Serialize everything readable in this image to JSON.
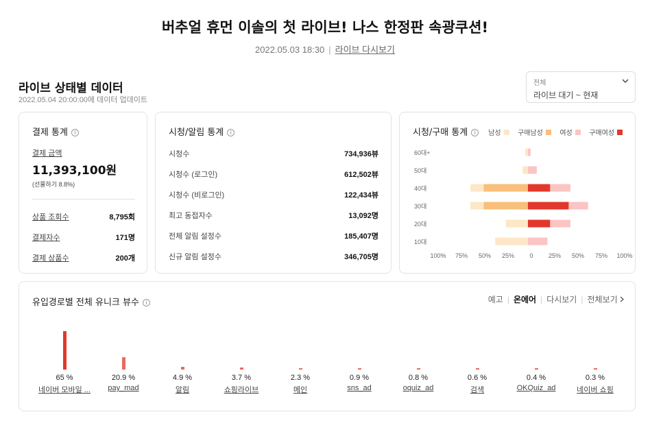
{
  "header": {
    "title": "버추얼 휴먼 이솔의 첫 라이브! 나스 한정판 속광쿠션!",
    "date": "2022.05.03 18:30",
    "separator": "|",
    "replay_link": "라이브 다시보기"
  },
  "section": {
    "title": "라이브 상태별 데이터",
    "updated": "2022.05.04 20:00:00에 데이터 업데이트",
    "filter": {
      "label": "전체",
      "value": "라이브 대기 ~ 현재"
    }
  },
  "payment": {
    "title": "결제 통계",
    "amount_label": "결제 금액",
    "amount_value": "11,393,100원",
    "gift_note": "(선물하기 8.8%)",
    "rows": [
      {
        "label": "상품 조회수",
        "value": "8,795회"
      },
      {
        "label": "결제자수",
        "value": "171명"
      },
      {
        "label": "결제 상품수",
        "value": "200개"
      }
    ]
  },
  "viewers": {
    "title": "시청/알림 통계",
    "rows": [
      {
        "label": "시청수",
        "value": "734,936뷰"
      },
      {
        "label": "시청수 (로그인)",
        "value": "612,502뷰"
      },
      {
        "label": "시청수 (비로그인)",
        "value": "122,434뷰"
      },
      {
        "label": "최고 동접자수",
        "value": "13,092명"
      },
      {
        "label": "전체 알림 설정수",
        "value": "185,407명"
      },
      {
        "label": "신규 알림 설정수",
        "value": "346,705명"
      }
    ]
  },
  "demo": {
    "title": "시청/구매 통계",
    "legend": [
      {
        "label": "남성",
        "color": "#fde7c6"
      },
      {
        "label": "구매남성",
        "color": "#f9bf7b"
      },
      {
        "label": "여성",
        "color": "#fbc5c3"
      },
      {
        "label": "구매여성",
        "color": "#e2382c"
      }
    ],
    "colors": {
      "male": "#fde7c6",
      "male_buy": "#f9bf7b",
      "female": "#fbc5c3",
      "female_buy": "#e2382c"
    },
    "axis_ticks": [
      "100%",
      "75%",
      "50%",
      "25%",
      "0",
      "25%",
      "50%",
      "75%",
      "100%"
    ],
    "chart_data": {
      "type": "bar",
      "orientation": "horizontal-diverging",
      "categories": [
        "60대+",
        "50대",
        "40대",
        "30대",
        "20대",
        "10대"
      ],
      "series": [
        {
          "name": "남성",
          "values": [
            3,
            6,
            65,
            65,
            25,
            37
          ]
        },
        {
          "name": "구매남성",
          "values": [
            0,
            0,
            50,
            50,
            0,
            0
          ]
        },
        {
          "name": "여성",
          "values": [
            3,
            10,
            48,
            68,
            48,
            22
          ]
        },
        {
          "name": "구매여성",
          "values": [
            0,
            0,
            25,
            46,
            25,
            0
          ]
        }
      ],
      "xlim": [
        -100,
        100
      ]
    }
  },
  "channels": {
    "title": "유입경로별 전체 유니크 뷰수",
    "tabs": [
      {
        "label": "예고",
        "active": false
      },
      {
        "label": "온에어",
        "active": true
      },
      {
        "label": "다시보기",
        "active": false
      }
    ],
    "view_all": "전체보기",
    "bar_color": "#e2382c",
    "chart_data": {
      "type": "bar",
      "categories": [
        "네이버 모바일 ...",
        "pay_mad",
        "알림",
        "쇼핑라이브",
        "메인",
        "sns_ad",
        "oquiz_ad",
        "검색",
        "OKQuiz_ad",
        "네이버 쇼핑"
      ],
      "values": [
        65,
        20.9,
        4.9,
        3.7,
        2.3,
        0.9,
        0.8,
        0.6,
        0.4,
        0.3
      ],
      "labels": [
        "65 %",
        "20.9 %",
        "4.9 %",
        "3.7 %",
        "2.3 %",
        "0.9 %",
        "0.8 %",
        "0.6 %",
        "0.4 %",
        "0.3 %"
      ],
      "ylim": [
        0,
        65
      ]
    }
  }
}
